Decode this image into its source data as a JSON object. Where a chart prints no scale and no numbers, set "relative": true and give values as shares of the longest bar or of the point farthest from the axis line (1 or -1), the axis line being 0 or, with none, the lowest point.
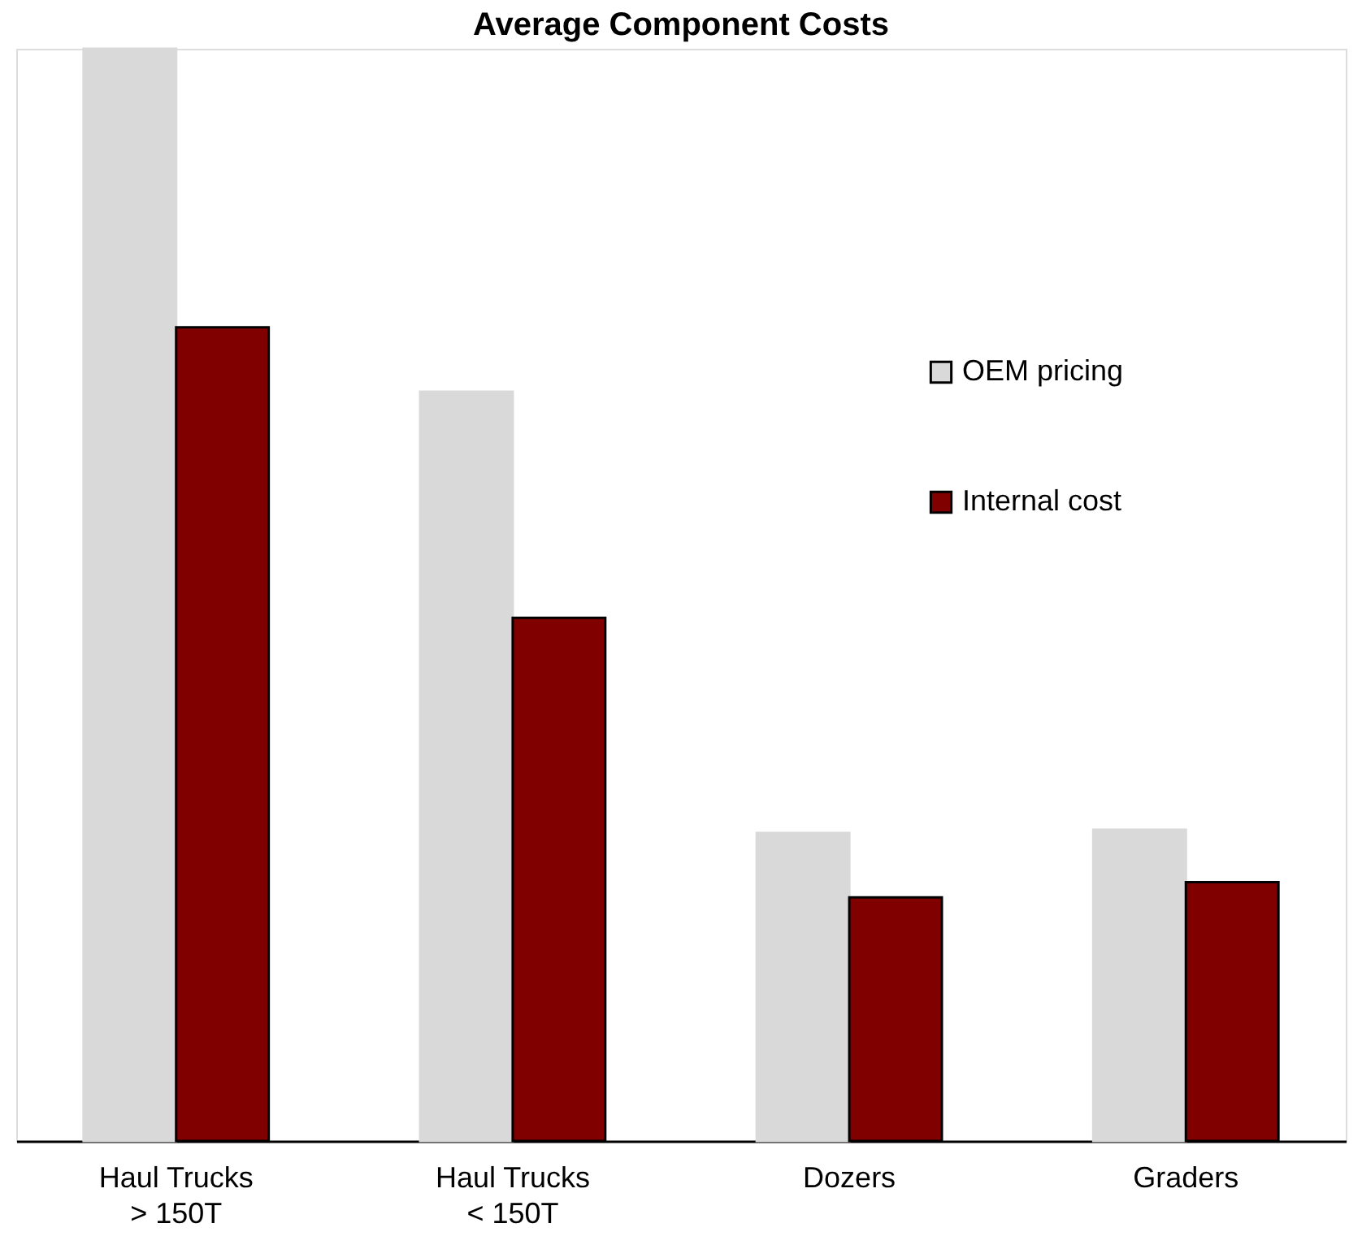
{
  "chart_data": {
    "type": "bar",
    "title": "Average Component Costs",
    "relative": true,
    "categories": [
      "Haul Trucks\n> 150T",
      "Haul Trucks\n< 150T",
      "Dozers",
      "Graders"
    ],
    "series": [
      {
        "name": "OEM pricing",
        "color": "#d9d9d9",
        "values": [
          1,
          0.686,
          0.282,
          0.285
        ]
      },
      {
        "name": "Internal cost",
        "color": "#800000",
        "values": [
          0.745,
          0.479,
          0.223,
          0.237
        ]
      }
    ],
    "legend": "right",
    "grid": false
  }
}
